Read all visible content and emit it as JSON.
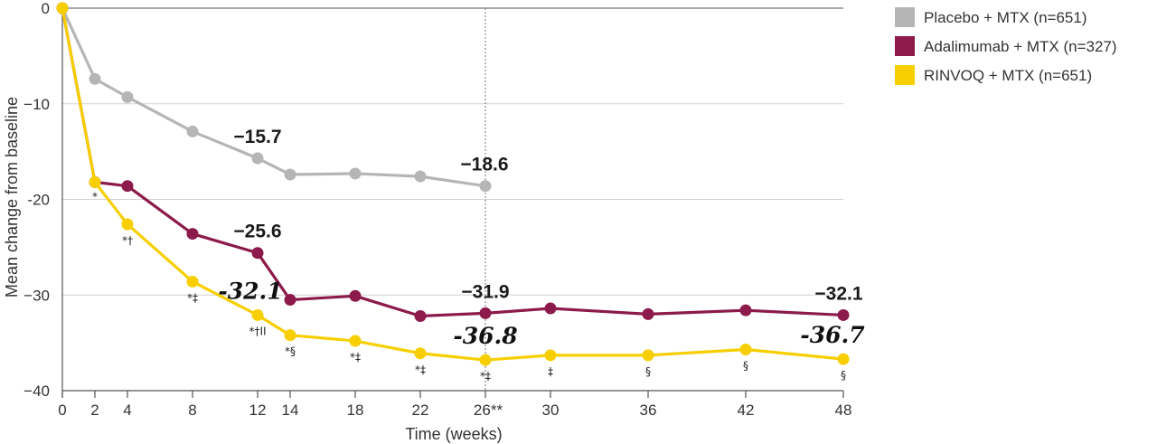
{
  "chart_data": {
    "type": "line",
    "xlabel": "Time (weeks)",
    "ylabel": "Mean change from baseline",
    "ylim": [
      -40,
      0
    ],
    "yticks": [
      0,
      -10,
      -20,
      -30,
      -40
    ],
    "ytick_labels": [
      "0",
      "−10",
      "-20",
      "−30",
      "−40"
    ],
    "xticks": [
      0,
      2,
      4,
      8,
      12,
      14,
      18,
      22,
      26,
      30,
      36,
      42,
      48
    ],
    "xtick_labels": [
      "0",
      "2",
      "4",
      "8",
      "12",
      "14",
      "18",
      "22",
      "26**",
      "30",
      "36",
      "42",
      "48"
    ],
    "grid": "horizontal",
    "reference_line_x": 26,
    "legend_position": "top-right",
    "series": [
      {
        "name": "Placebo + MTX (n=651)",
        "color": "#b5b5b5",
        "x": [
          0,
          2,
          4,
          8,
          12,
          14,
          18,
          22,
          26
        ],
        "y": [
          0,
          -7.4,
          -9.3,
          -12.9,
          -15.7,
          -17.4,
          -17.3,
          -17.6,
          -18.6
        ]
      },
      {
        "name": "Adalimumab + MTX (n=327)",
        "color": "#8c1a4b",
        "x": [
          0,
          2,
          4,
          8,
          12,
          14,
          18,
          22,
          26,
          30,
          36,
          42,
          48
        ],
        "y": [
          0,
          -18.2,
          -18.6,
          -23.6,
          -25.6,
          -30.5,
          -30.1,
          -32.2,
          -31.9,
          -31.4,
          -32.0,
          -31.6,
          -32.1
        ]
      },
      {
        "name": "RINVOQ + MTX (n=651)",
        "color": "#f7cf00",
        "x": [
          0,
          2,
          4,
          8,
          12,
          14,
          18,
          22,
          26,
          30,
          36,
          42,
          48
        ],
        "y": [
          0,
          -18.2,
          -22.6,
          -28.6,
          -32.1,
          -34.2,
          -34.8,
          -36.1,
          -36.8,
          -36.3,
          -36.3,
          -35.7,
          -36.7
        ]
      }
    ],
    "data_labels": [
      {
        "series": 0,
        "x": 12,
        "text": "−15.7"
      },
      {
        "series": 0,
        "x": 26,
        "text": "−18.6"
      },
      {
        "series": 1,
        "x": 12,
        "text": "−25.6"
      },
      {
        "series": 1,
        "x": 26,
        "text": "−31.9"
      },
      {
        "series": 1,
        "x": 48,
        "text": "−32.1"
      },
      {
        "series": 2,
        "x": 12,
        "text": "-32.1"
      },
      {
        "series": 2,
        "x": 26,
        "text": "-36.8"
      },
      {
        "series": 2,
        "x": 48,
        "text": "-36.7"
      }
    ],
    "significance_marks": [
      {
        "x": 2,
        "text": "*"
      },
      {
        "x": 4,
        "text": "*†"
      },
      {
        "x": 8,
        "text": "*‡"
      },
      {
        "x": 12,
        "text": "*†II"
      },
      {
        "x": 14,
        "text": "*§"
      },
      {
        "x": 18,
        "text": "*‡"
      },
      {
        "x": 22,
        "text": "*‡"
      },
      {
        "x": 26,
        "text": "*‡"
      },
      {
        "x": 30,
        "text": "‡"
      },
      {
        "x": 36,
        "text": "§"
      },
      {
        "x": 42,
        "text": "§"
      },
      {
        "x": 48,
        "text": "§"
      }
    ]
  }
}
